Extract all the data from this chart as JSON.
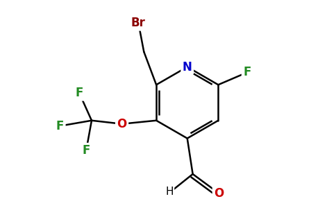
{
  "background_color": "#ffffff",
  "bond_color": "#000000",
  "bond_width": 1.8,
  "atom_colors": {
    "Br": "#8b0000",
    "N": "#0000cd",
    "F": "#228b22",
    "O": "#cc0000",
    "C": "#000000"
  },
  "figsize": [
    4.84,
    3.0
  ],
  "dpi": 100,
  "font_size": 12
}
